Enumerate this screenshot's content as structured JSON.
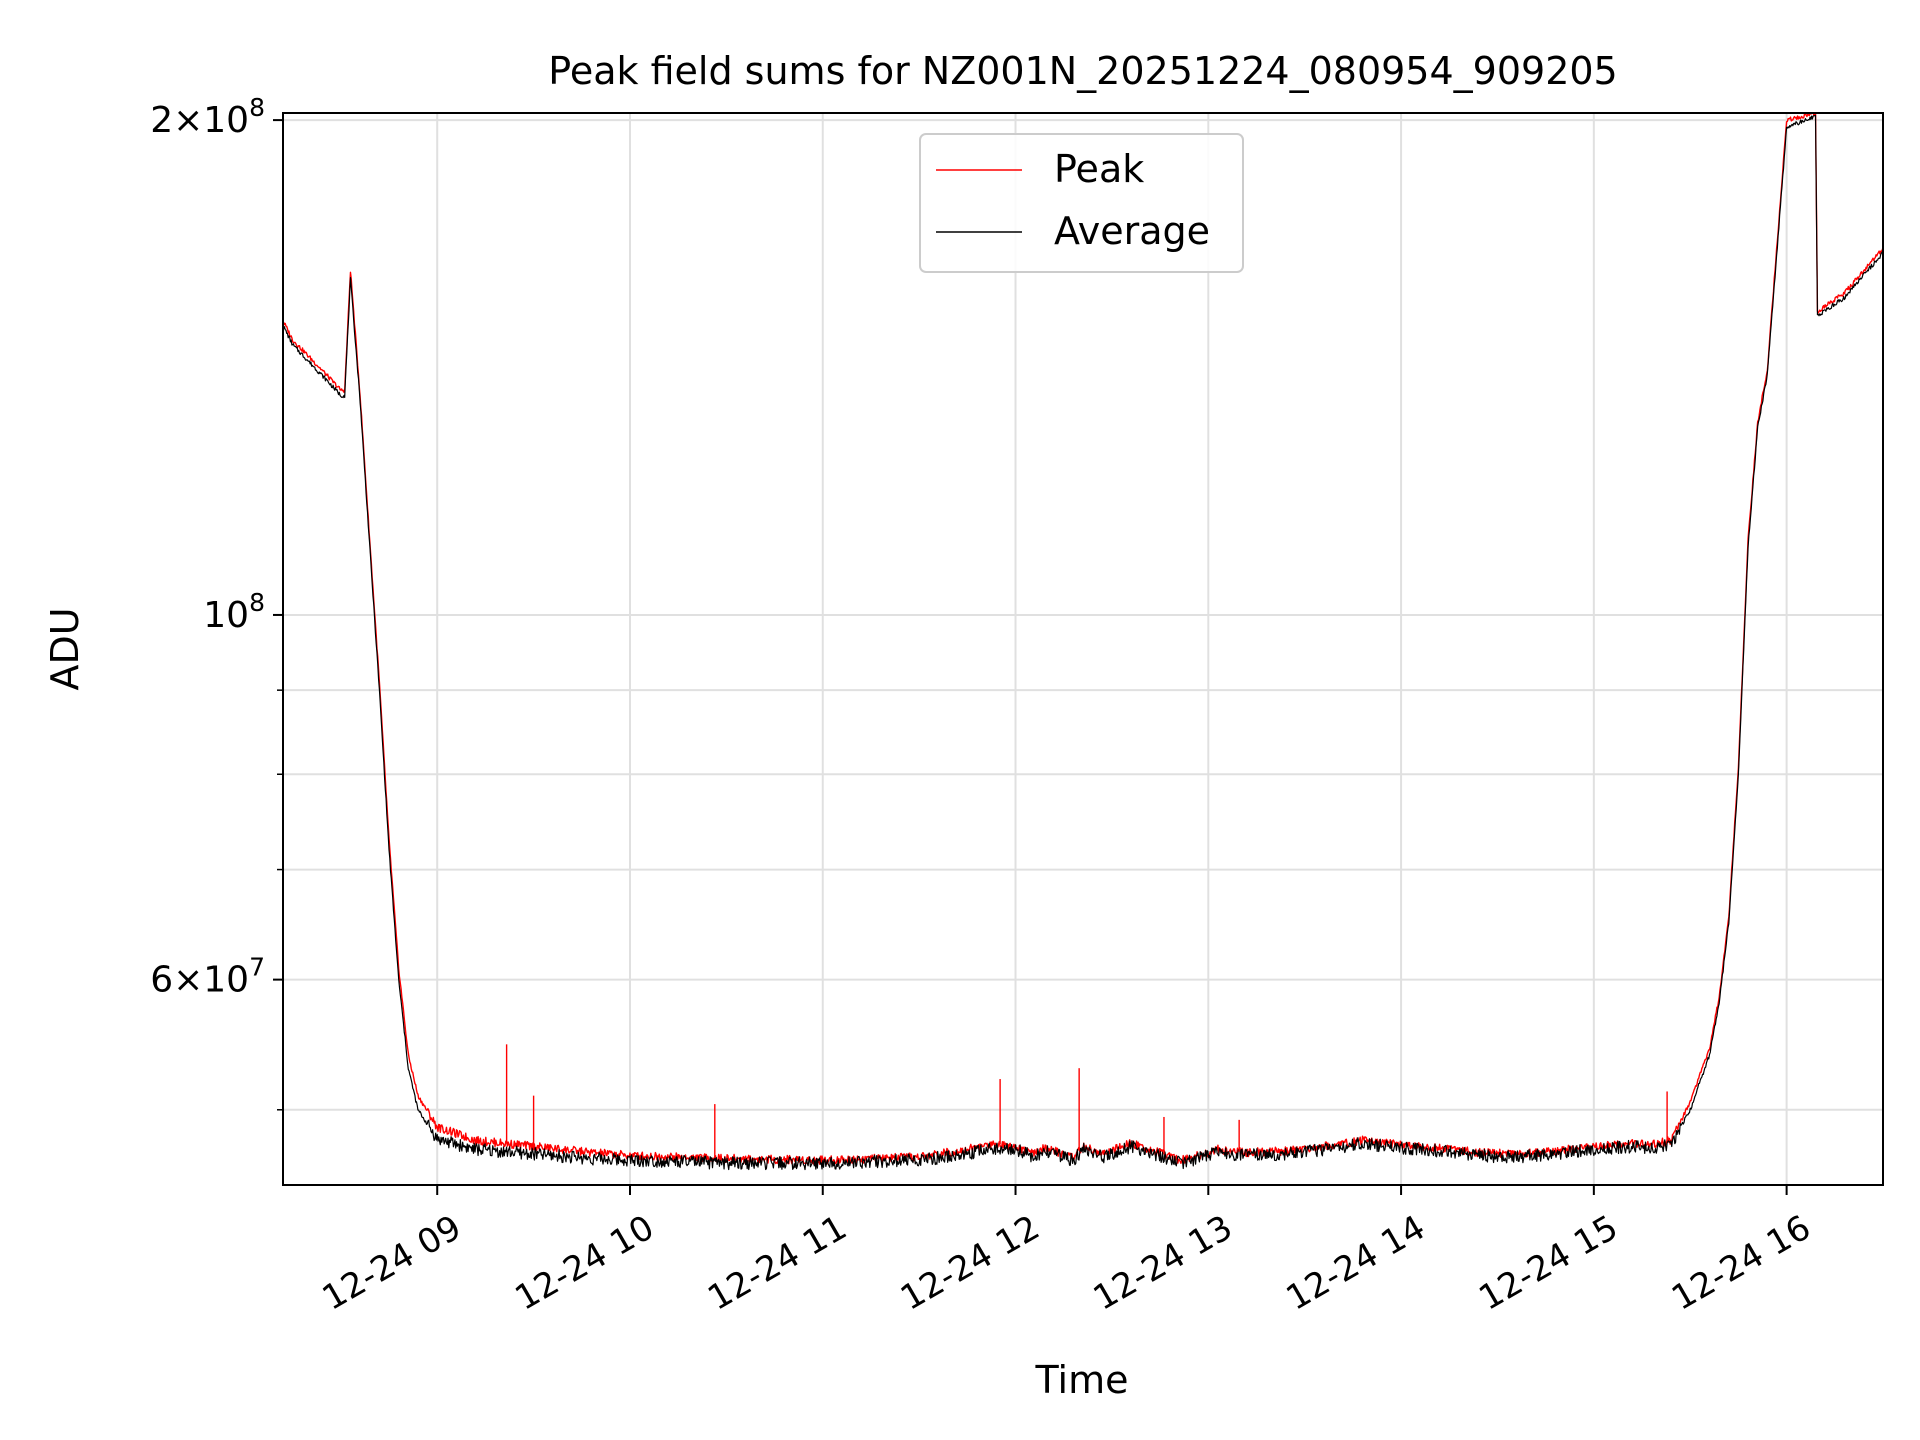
{
  "chart_data": {
    "type": "line",
    "title": "Peak field sums for NZ001N_20251224_080954_909205",
    "xlabel": "Time",
    "ylabel": "ADU",
    "yscale": "log",
    "xlim_hours": [
      8.2,
      16.5
    ],
    "ylim": [
      45000000,
      202000000
    ],
    "grid": true,
    "legend_position": "upper center",
    "legend": [
      "Peak",
      "Average"
    ],
    "colors": {
      "Peak": "#ff0000",
      "Average": "#000000",
      "grid": "#e0e0e0"
    },
    "x_ticks": [
      {
        "value": 9,
        "label": "12-24 09"
      },
      {
        "value": 10,
        "label": "12-24 10"
      },
      {
        "value": 11,
        "label": "12-24 11"
      },
      {
        "value": 12,
        "label": "12-24 12"
      },
      {
        "value": 13,
        "label": "12-24 13"
      },
      {
        "value": 14,
        "label": "12-24 14"
      },
      {
        "value": 15,
        "label": "12-24 15"
      },
      {
        "value": 16,
        "label": "12-24 16"
      }
    ],
    "y_major_ticks": [
      {
        "value": 60000000,
        "mantissa": "6",
        "exponent": "7"
      },
      {
        "value": 100000000,
        "mantissa": "",
        "exponent": "8"
      },
      {
        "value": 200000000,
        "mantissa": "2",
        "exponent": "8"
      }
    ],
    "y_minor_ticks": [
      50000000,
      70000000,
      80000000,
      90000000
    ],
    "times_symbol": "×",
    "base": "10",
    "series": [
      {
        "name": "Average",
        "x": [
          8.2,
          8.25,
          8.4,
          8.5,
          8.52,
          8.55,
          8.6,
          8.65,
          8.7,
          8.75,
          8.8,
          8.85,
          8.9,
          9.0,
          9.2,
          9.5,
          9.8,
          10.0,
          10.5,
          11.0,
          11.5,
          11.7,
          11.9,
          12.0,
          12.1,
          12.15,
          12.3,
          12.35,
          12.45,
          12.6,
          12.7,
          12.85,
          12.95,
          13.05,
          13.2,
          13.4,
          13.6,
          13.8,
          14.0,
          14.2,
          14.4,
          14.6,
          14.8,
          15.0,
          15.2,
          15.3,
          15.4,
          15.5,
          15.6,
          15.65,
          15.7,
          15.75,
          15.8,
          15.85,
          15.9,
          16.0,
          16.15,
          16.16,
          16.3,
          16.5
        ],
        "y": [
          150000000,
          146000000,
          140000000,
          136000000,
          136000000,
          160000000,
          135000000,
          110000000,
          90000000,
          72000000,
          60000000,
          53000000,
          50000000,
          48000000,
          47300000,
          47000000,
          46700000,
          46600000,
          46400000,
          46400000,
          46600000,
          46900000,
          47400000,
          47300000,
          46800000,
          47200000,
          46600000,
          47300000,
          46800000,
          47500000,
          47100000,
          46400000,
          46700000,
          47100000,
          46900000,
          47000000,
          47300000,
          47700000,
          47400000,
          47200000,
          46900000,
          46800000,
          47000000,
          47300000,
          47500000,
          47400000,
          47600000,
          50000000,
          54000000,
          58000000,
          65000000,
          80000000,
          110000000,
          130000000,
          140000000,
          198000000,
          201000000,
          152000000,
          156000000,
          166000000
        ]
      },
      {
        "name": "Peak",
        "x": [
          8.2,
          8.25,
          8.4,
          8.5,
          8.52,
          8.55,
          8.6,
          8.65,
          8.7,
          8.75,
          8.8,
          8.85,
          8.9,
          9.0,
          9.2,
          9.5,
          9.8,
          10.0,
          10.5,
          11.0,
          11.5,
          11.7,
          11.9,
          12.0,
          12.1,
          12.15,
          12.3,
          12.35,
          12.45,
          12.6,
          12.7,
          12.85,
          12.95,
          13.05,
          13.2,
          13.4,
          13.6,
          13.8,
          14.0,
          14.2,
          14.4,
          14.6,
          14.8,
          15.0,
          15.2,
          15.3,
          15.4,
          15.5,
          15.6,
          15.65,
          15.7,
          15.75,
          15.8,
          15.85,
          15.9,
          16.0,
          16.15,
          16.16,
          16.3,
          16.5
        ],
        "y": [
          151000000,
          147000000,
          141000000,
          137000000,
          137000000,
          162000000,
          136000000,
          111000000,
          91000000,
          73000000,
          61000000,
          54000000,
          51000000,
          48800000,
          47900000,
          47500000,
          47100000,
          46900000,
          46700000,
          46600000,
          46800000,
          47200000,
          47700000,
          47500000,
          47000000,
          47400000,
          46800000,
          47500000,
          47000000,
          47700000,
          47300000,
          46600000,
          46900000,
          47300000,
          47100000,
          47200000,
          47500000,
          47900000,
          47600000,
          47400000,
          47100000,
          47000000,
          47200000,
          47500000,
          47700000,
          47600000,
          47900000,
          50500000,
          54500000,
          58500000,
          65500000,
          81000000,
          111000000,
          131000000,
          141000000,
          200000000,
          202000000,
          153000000,
          157000000,
          167000000
        ]
      }
    ],
    "peak_spikes": [
      {
        "x": 9.36,
        "y": 54800000
      },
      {
        "x": 9.5,
        "y": 51000000
      },
      {
        "x": 10.44,
        "y": 50400000
      },
      {
        "x": 11.92,
        "y": 52200000
      },
      {
        "x": 12.33,
        "y": 53000000
      },
      {
        "x": 12.77,
        "y": 49500000
      },
      {
        "x": 13.16,
        "y": 49300000
      },
      {
        "x": 15.38,
        "y": 51300000
      }
    ]
  }
}
